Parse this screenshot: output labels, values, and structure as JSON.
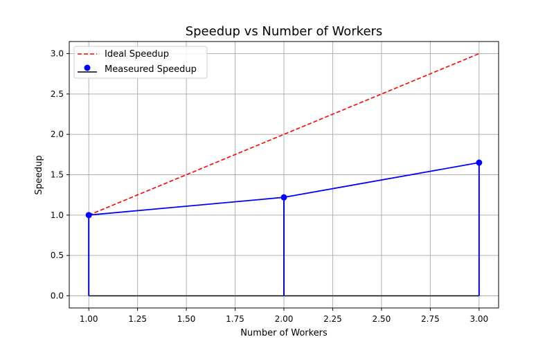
{
  "chart_data": {
    "type": "line",
    "title": "Speedup vs Number of Workers",
    "xlabel": "Number of Workers",
    "ylabel": "Speedup",
    "xlim": [
      0.9,
      3.1
    ],
    "ylim": [
      -0.15,
      3.15
    ],
    "xticks": [
      1.0,
      1.25,
      1.5,
      1.75,
      2.0,
      2.25,
      2.5,
      2.75,
      3.0
    ],
    "xtick_labels": [
      "1.00",
      "1.25",
      "1.50",
      "1.75",
      "2.00",
      "2.25",
      "2.50",
      "2.75",
      "3.00"
    ],
    "yticks": [
      0.0,
      0.5,
      1.0,
      1.5,
      2.0,
      2.5,
      3.0
    ],
    "ytick_labels": [
      "0.0",
      "0.5",
      "1.0",
      "1.5",
      "2.0",
      "2.5",
      "3.0"
    ],
    "grid": true,
    "legend_position": "top-left",
    "series": [
      {
        "name": "Ideal Speedup",
        "style": "dashed-line",
        "color": "#ff0000",
        "x": [
          1,
          2,
          3
        ],
        "y": [
          1.0,
          2.0,
          3.0
        ]
      },
      {
        "name": "Measeured Speedup",
        "style": "stem",
        "color": "#0000ff",
        "baseline_color": "#000000",
        "x": [
          1,
          2,
          3
        ],
        "y": [
          1.0,
          1.22,
          1.65
        ]
      }
    ]
  }
}
